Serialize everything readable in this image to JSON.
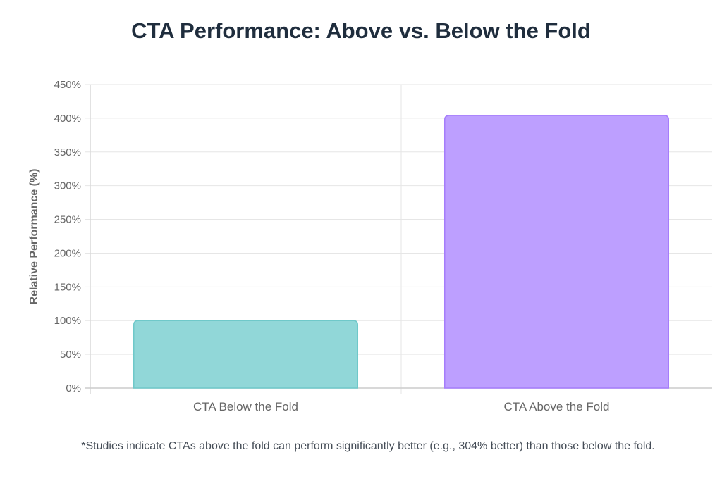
{
  "chart_data": {
    "type": "bar",
    "title": "CTA Performance: Above vs. Below the Fold",
    "ylabel": "Relative Performance (%)",
    "xlabel": "",
    "categories": [
      "CTA Below the Fold",
      "CTA Above the Fold"
    ],
    "values": [
      100,
      404
    ],
    "ylim": [
      0,
      450
    ],
    "yticks": [
      0,
      50,
      100,
      150,
      200,
      250,
      300,
      350,
      400,
      450
    ],
    "ytick_labels": [
      "0%",
      "50%",
      "100%",
      "150%",
      "200%",
      "250%",
      "300%",
      "350%",
      "400%",
      "450%"
    ],
    "bar_colors": [
      "#91d7d8",
      "#bd9fff"
    ],
    "bar_border_colors": [
      "#6fc8c9",
      "#a57dfb"
    ],
    "grid": true,
    "legend": "none"
  },
  "footnote": "*Studies indicate CTAs above the fold can perform significantly better (e.g., 304% better) than those below the fold."
}
